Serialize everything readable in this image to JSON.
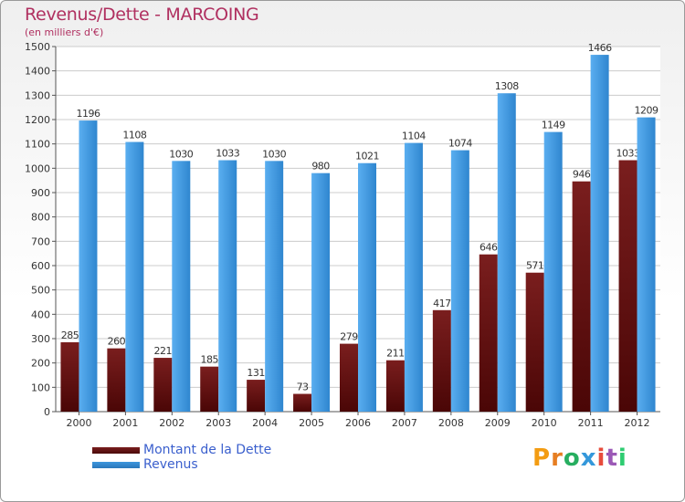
{
  "title": "Revenus/Dette - MARCOING",
  "subtitle": "(en milliers d'€)",
  "colors": {
    "dette": "#7a1e1e",
    "revenus": "#3d96dd",
    "grid": "#cccccc",
    "title": "#b03060",
    "legend_text": "#3a5fcd"
  },
  "legend": {
    "dette_label": "Montant de la Dette",
    "revenus_label": "Revenus"
  },
  "logo": {
    "text": "Proxiti"
  },
  "chart_data": {
    "type": "bar",
    "title": "Revenus/Dette - MARCOING",
    "ylabel": "(en milliers d'€)",
    "xlabel": "",
    "ylim": [
      0,
      1500
    ],
    "yticks": [
      0,
      100,
      200,
      300,
      400,
      500,
      600,
      700,
      800,
      900,
      1000,
      1100,
      1200,
      1300,
      1400,
      1500
    ],
    "grid": true,
    "categories": [
      "2000",
      "2001",
      "2002",
      "2003",
      "2004",
      "2005",
      "2006",
      "2007",
      "2008",
      "2009",
      "2010",
      "2011",
      "2012"
    ],
    "series": [
      {
        "name": "Montant de la Dette",
        "values": [
          285,
          260,
          221,
          185,
          131,
          73,
          279,
          211,
          417,
          646,
          571,
          946,
          1033
        ]
      },
      {
        "name": "Revenus",
        "values": [
          1196,
          1108,
          1030,
          1033,
          1030,
          980,
          1021,
          1104,
          1074,
          1308,
          1149,
          1466,
          1209
        ]
      }
    ]
  }
}
